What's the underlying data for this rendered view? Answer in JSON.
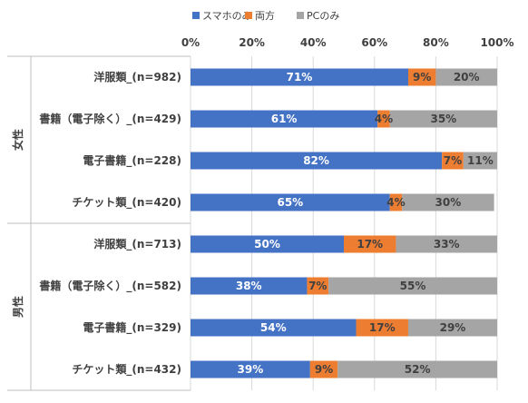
{
  "chart_data": {
    "type": "bar",
    "stacked": true,
    "orientation": "horizontal",
    "percent_stacked": true,
    "legend_position": "top",
    "grid": true,
    "xlim": [
      0,
      100
    ],
    "x_ticks": [
      "0%",
      "20%",
      "40%",
      "60%",
      "80%",
      "100%"
    ],
    "groups": [
      {
        "label": "女性",
        "categories": [
          "洋服類_(n=982)",
          "書籍（電子除く）_(n=429)",
          "電子書籍_(n=228)",
          "チケット類_(n=420)"
        ]
      },
      {
        "label": "男性",
        "categories": [
          "洋服類_(n=713)",
          "書籍（電子除く）_(n=582)",
          "電子書籍_(n=329)",
          "チケット類_(n=432)"
        ]
      }
    ],
    "categories": [
      "洋服類_(n=982)",
      "書籍（電子除く）_(n=429)",
      "電子書籍_(n=228)",
      "チケット類_(n=420)",
      "洋服類_(n=713)",
      "書籍（電子除く）_(n=582)",
      "電子書籍_(n=329)",
      "チケット類_(n=432)"
    ],
    "series": [
      {
        "name": "スマホのみ",
        "color": "#4472C4",
        "values": [
          71,
          61,
          82,
          65,
          50,
          38,
          54,
          39
        ]
      },
      {
        "name": "両方",
        "color": "#ED7D31",
        "values": [
          9,
          4,
          7,
          4,
          17,
          7,
          17,
          9
        ]
      },
      {
        "name": "PCのみ",
        "color": "#A5A5A5",
        "values": [
          20,
          35,
          11,
          30,
          33,
          55,
          29,
          52
        ]
      }
    ],
    "data_labels": [
      [
        "71%",
        "61%",
        "82%",
        "65%",
        "50%",
        "38%",
        "54%",
        "39%"
      ],
      [
        "9%",
        "4%",
        "7%",
        "4%",
        "17%",
        "7%",
        "17%",
        "9%"
      ],
      [
        "20%",
        "35%",
        "11%",
        "30%",
        "33%",
        "55%",
        "29%",
        "52%"
      ]
    ]
  }
}
